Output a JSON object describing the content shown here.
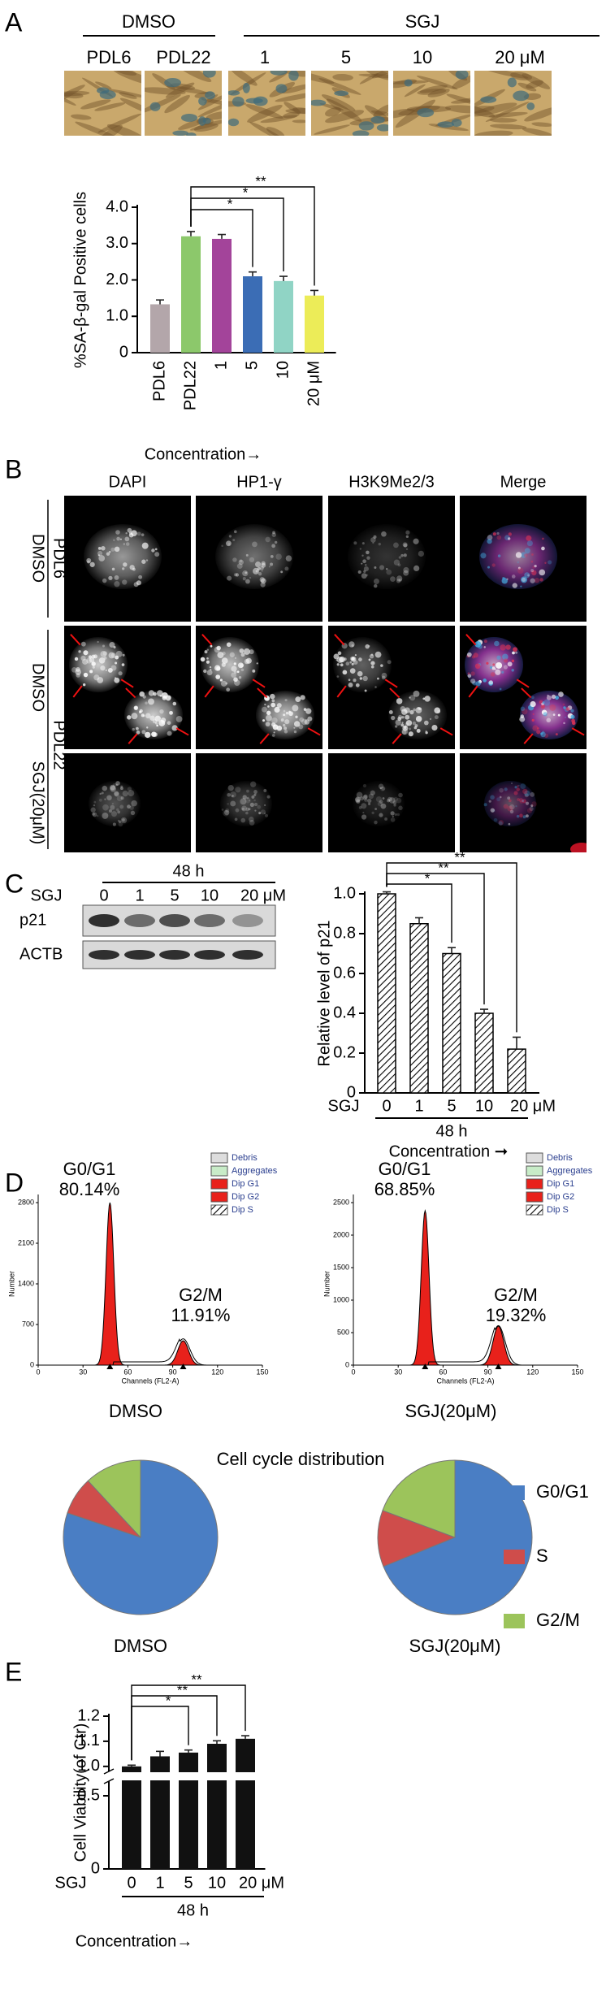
{
  "panel_labels": [
    "A",
    "B",
    "C",
    "D",
    "E"
  ],
  "panel_a": {
    "groups": [
      "DMSO",
      "SGJ"
    ],
    "lanes": [
      "PDL6",
      "PDL22",
      "1",
      "5",
      "10",
      "20 μM"
    ]
  },
  "panel_b": {
    "columns": [
      "DAPI",
      "HP1-γ",
      "H3K9Me2/3",
      "Merge"
    ],
    "row_labels": [
      "DMSO",
      "PDL6",
      "DMSO",
      "SGJ(20μM)",
      "PDL22"
    ]
  },
  "panel_c_blot": {
    "time": "48 h",
    "treatment": "SGJ",
    "lanes": [
      "0",
      "1",
      "5",
      "10",
      "20 μM"
    ],
    "bands": [
      "p21",
      "ACTB"
    ]
  },
  "panel_d_histograms": [
    {
      "legend": [
        "Debris",
        "Aggregates",
        "Dip G1",
        "Dip G2",
        "Dip S"
      ],
      "peaks": [
        {
          "label": "G0/G1",
          "percent": "80.14%"
        },
        {
          "label": "G2/M",
          "percent": "11.91%"
        }
      ],
      "y_label": "Number",
      "x_label": "Channels (FL2-A)",
      "yticks": [
        "2800",
        "2100",
        "1400",
        "700",
        "0"
      ],
      "xticks": [
        "0",
        "30",
        "60",
        "90",
        "120",
        "150"
      ],
      "caption": "DMSO"
    },
    {
      "legend": [
        "Debris",
        "Aggregates",
        "Dip G1",
        "Dip G2",
        "Dip S"
      ],
      "peaks": [
        {
          "label": "G0/G1",
          "percent": "68.85%"
        },
        {
          "label": "G2/M",
          "percent": "19.32%"
        }
      ],
      "y_label": "Number",
      "x_label": "Channels (FL2-A)",
      "yticks": [
        "2500",
        "2000",
        "1500",
        "1000",
        "500",
        "0"
      ],
      "xticks": [
        "0",
        "30",
        "60",
        "90",
        "120",
        "150"
      ],
      "caption": "SGJ(20μM)"
    }
  ],
  "chart_data": [
    {
      "type": "bar",
      "y_label": "%SA-β-gal Positive cells",
      "x_label": "Concentration→",
      "categories": [
        "PDL6",
        "PDL22",
        "1",
        "5",
        "10",
        "20 μM"
      ],
      "values": [
        1.33,
        3.2,
        3.13,
        2.1,
        1.97,
        1.57
      ],
      "errors": [
        0.12,
        0.13,
        0.12,
        0.12,
        0.13,
        0.14
      ],
      "colors": [
        "#b3a6aa",
        "#8cc86b",
        "#a3449a",
        "#3b6db5",
        "#90d4c5",
        "#ecec58"
      ],
      "ylim": [
        0,
        4
      ],
      "yticks": [
        0,
        {
          "value": 1,
          "label": "1.0"
        },
        {
          "value": 2,
          "label": "2.0"
        },
        {
          "value": 3,
          "label": "3.0"
        },
        {
          "value": 4,
          "label": "4.0"
        }
      ],
      "significance": [
        {
          "label": "**",
          "between": [
            1,
            5
          ]
        },
        {
          "label": "*",
          "between": [
            1,
            4
          ]
        },
        {
          "label": "*",
          "between": [
            1,
            3
          ]
        }
      ]
    },
    {
      "type": "bar",
      "y_label": "Relative level of p21",
      "x_label": "Concentration ➞",
      "x_prefix": "SGJ",
      "x_group": "48 h",
      "categories": [
        "0",
        "1",
        "5",
        "10",
        "20 μM"
      ],
      "values": [
        1.0,
        0.85,
        0.7,
        0.4,
        0.22
      ],
      "errors": [
        0.01,
        0.03,
        0.03,
        0.02,
        0.06
      ],
      "color": "#000000",
      "hatch": true,
      "ylim": [
        0,
        1
      ],
      "yticks": [
        0,
        0.2,
        0.4,
        0.6,
        0.8,
        {
          "value": 1,
          "label": "1.0"
        }
      ],
      "significance": [
        {
          "label": "**",
          "between": [
            0,
            4
          ]
        },
        {
          "label": "**",
          "between": [
            0,
            3
          ]
        },
        {
          "label": "*",
          "between": [
            0,
            2
          ]
        }
      ]
    },
    {
      "type": "pie",
      "title": "Cell cycle distribution",
      "categories": [
        "G0/G1",
        "S",
        "G2/M"
      ],
      "colors": [
        "#4a7ec4",
        "#cf4d4b",
        "#9cc45b"
      ],
      "series": [
        {
          "name": "DMSO",
          "values": [
            80.14,
            7.95,
            11.91
          ]
        },
        {
          "name": "SGJ(20μM)",
          "values": [
            68.85,
            11.83,
            19.32
          ]
        }
      ]
    },
    {
      "type": "bar",
      "y_label": "Cell Viability(of Ctr)",
      "x_label": "Concentration→",
      "x_prefix": "SGJ",
      "x_group": "48 h",
      "categories": [
        "0",
        "1",
        "5",
        "10",
        "20 μM"
      ],
      "values": [
        1.0,
        1.04,
        1.055,
        1.09,
        1.11
      ],
      "errors": [
        0.005,
        0.02,
        0.01,
        0.012,
        0.012
      ],
      "color": "#111111",
      "ylim": [
        0,
        1.2
      ],
      "ybreak": [
        0.6,
        0.98
      ],
      "yticks": [
        0,
        0.5,
        {
          "value": 1,
          "label": "1.0"
        },
        1.1,
        1.2
      ],
      "significance": [
        {
          "label": "**",
          "between": [
            0,
            4
          ]
        },
        {
          "label": "**",
          "between": [
            0,
            3
          ]
        },
        {
          "label": "*",
          "between": [
            0,
            2
          ]
        }
      ]
    }
  ]
}
